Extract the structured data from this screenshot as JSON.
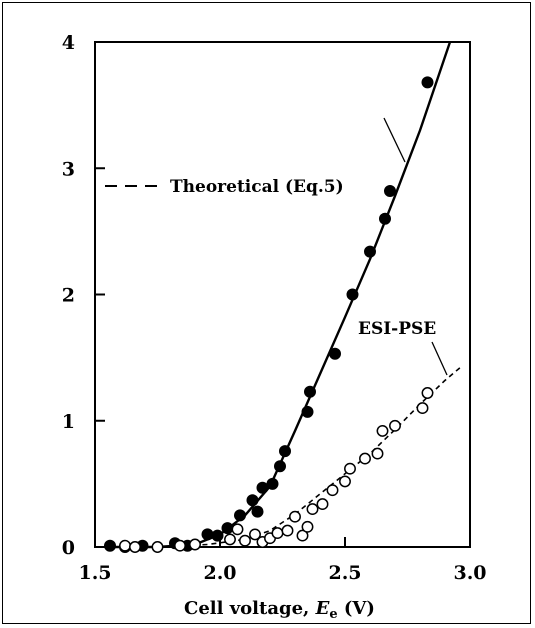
{
  "chart_data": {
    "type": "scatter",
    "xlabel_prefix": "Cell voltage, ",
    "xlabel_var": "E",
    "xlabel_sub": "e",
    "xlabel_unit": " (V)",
    "ylabel": "",
    "xlim": [
      1.5,
      3.0
    ],
    "ylim": [
      0,
      4
    ],
    "x_ticks": [
      "1.5",
      "2.0",
      "2.5",
      "3.0"
    ],
    "y_ticks": [
      "0",
      "1",
      "2",
      "3",
      "4"
    ],
    "annotations": {
      "theoretical": "Theoretical (Eq.5)",
      "esi": "ESI-PSE"
    },
    "series": [
      {
        "marker": "filled-circle",
        "color": "#000000",
        "points": [
          [
            1.56,
            0.01
          ],
          [
            1.62,
            0.0
          ],
          [
            1.69,
            0.01
          ],
          [
            1.82,
            0.03
          ],
          [
            1.87,
            0.01
          ],
          [
            1.95,
            0.1
          ],
          [
            1.99,
            0.09
          ],
          [
            2.03,
            0.15
          ],
          [
            2.08,
            0.25
          ],
          [
            2.13,
            0.37
          ],
          [
            2.15,
            0.28
          ],
          [
            2.17,
            0.47
          ],
          [
            2.21,
            0.5
          ],
          [
            2.24,
            0.64
          ],
          [
            2.26,
            0.76
          ],
          [
            2.35,
            1.07
          ],
          [
            2.36,
            1.23
          ],
          [
            2.46,
            1.53
          ],
          [
            2.53,
            2.0
          ],
          [
            2.6,
            2.34
          ],
          [
            2.66,
            2.6
          ],
          [
            2.68,
            2.82
          ],
          [
            2.83,
            3.68
          ]
        ],
        "fit_line": [
          [
            1.58,
            0.0
          ],
          [
            1.75,
            0.0
          ],
          [
            1.9,
            0.02
          ],
          [
            2.0,
            0.1
          ],
          [
            2.1,
            0.25
          ],
          [
            2.2,
            0.48
          ],
          [
            2.3,
            0.92
          ],
          [
            2.4,
            1.37
          ],
          [
            2.5,
            1.82
          ],
          [
            2.6,
            2.28
          ],
          [
            2.7,
            2.78
          ],
          [
            2.8,
            3.3
          ],
          [
            2.92,
            4.0
          ]
        ]
      },
      {
        "marker": "open-circle",
        "color": "#000000",
        "points": [
          [
            1.62,
            0.01
          ],
          [
            1.66,
            0.0
          ],
          [
            1.75,
            0.0
          ],
          [
            1.84,
            0.01
          ],
          [
            1.9,
            0.02
          ],
          [
            2.04,
            0.06
          ],
          [
            2.07,
            0.14
          ],
          [
            2.1,
            0.05
          ],
          [
            2.14,
            0.1
          ],
          [
            2.17,
            0.04
          ],
          [
            2.2,
            0.07
          ],
          [
            2.23,
            0.11
          ],
          [
            2.27,
            0.13
          ],
          [
            2.3,
            0.24
          ],
          [
            2.33,
            0.09
          ],
          [
            2.35,
            0.16
          ],
          [
            2.37,
            0.3
          ],
          [
            2.41,
            0.34
          ],
          [
            2.45,
            0.45
          ],
          [
            2.5,
            0.52
          ],
          [
            2.52,
            0.62
          ],
          [
            2.58,
            0.7
          ],
          [
            2.63,
            0.74
          ],
          [
            2.65,
            0.92
          ],
          [
            2.7,
            0.96
          ],
          [
            2.81,
            1.1
          ],
          [
            2.83,
            1.22
          ]
        ],
        "fit_line": [
          [
            1.75,
            0.0
          ],
          [
            1.95,
            0.02
          ],
          [
            2.1,
            0.06
          ],
          [
            2.2,
            0.13
          ],
          [
            2.3,
            0.26
          ],
          [
            2.4,
            0.42
          ],
          [
            2.5,
            0.58
          ],
          [
            2.6,
            0.74
          ],
          [
            2.7,
            0.93
          ],
          [
            2.8,
            1.13
          ],
          [
            2.9,
            1.32
          ],
          [
            2.96,
            1.42
          ]
        ]
      }
    ],
    "legend": [
      {
        "label": "Theoretical (Eq.5)",
        "style": "dashed"
      }
    ],
    "grid": false
  }
}
